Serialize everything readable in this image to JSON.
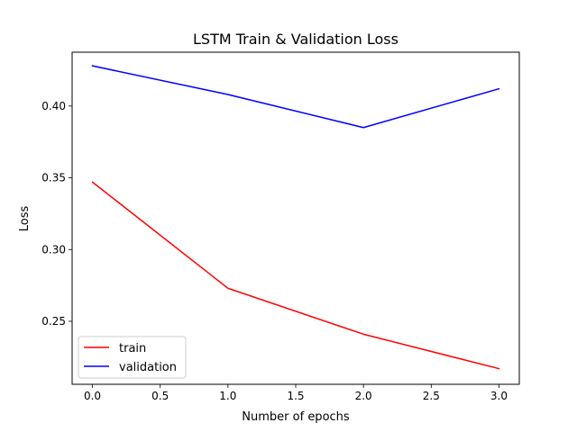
{
  "chart_data": {
    "type": "line",
    "title": "LSTM Train & Validation Loss",
    "xlabel": "Number of epochs",
    "ylabel": "Loss",
    "x": [
      0,
      1,
      2,
      3
    ],
    "series": [
      {
        "name": "train",
        "color": "#ff0000",
        "values": [
          0.347,
          0.273,
          0.241,
          0.217
        ]
      },
      {
        "name": "validation",
        "color": "#0000ff",
        "values": [
          0.428,
          0.408,
          0.385,
          0.412
        ]
      }
    ],
    "xlim": [
      -0.15,
      3.15
    ],
    "ylim": [
      0.2061,
      0.4375
    ],
    "xticks": [
      0.0,
      0.5,
      1.0,
      1.5,
      2.0,
      2.5,
      3.0
    ],
    "xtick_labels": [
      "0.0",
      "0.5",
      "1.0",
      "1.5",
      "2.0",
      "2.5",
      "3.0"
    ],
    "yticks": [
      0.25,
      0.3,
      0.35,
      0.4
    ],
    "ytick_labels": [
      "0.25",
      "0.30",
      "0.35",
      "0.40"
    ],
    "grid": false,
    "legend": {
      "position": "lower-left",
      "entries": [
        "train",
        "validation"
      ]
    }
  }
}
